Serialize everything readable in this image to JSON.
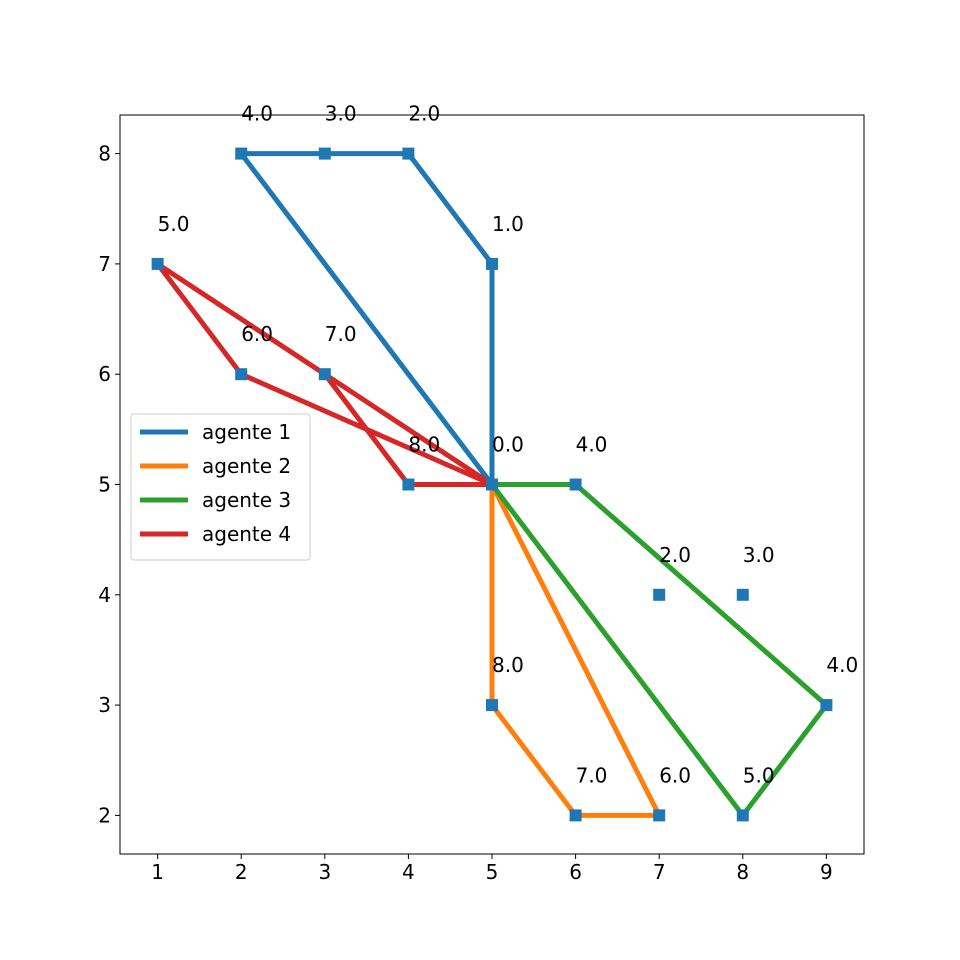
{
  "chart_data": {
    "type": "line",
    "title": "",
    "xlabel": "",
    "ylabel": "",
    "xlim": [
      0.55,
      9.45
    ],
    "ylim": [
      1.65,
      8.35
    ],
    "xticks": [
      1,
      2,
      3,
      4,
      5,
      6,
      7,
      8,
      9
    ],
    "yticks": [
      2,
      3,
      4,
      5,
      6,
      7,
      8
    ],
    "grid": false,
    "legend_position": "center-left",
    "nodes": [
      {
        "x": 5,
        "y": 5,
        "label": "0.0"
      },
      {
        "x": 5,
        "y": 7,
        "label": "1.0"
      },
      {
        "x": 4,
        "y": 8,
        "label": "2.0"
      },
      {
        "x": 3,
        "y": 8,
        "label": "3.0"
      },
      {
        "x": 2,
        "y": 8,
        "label": "4.0"
      },
      {
        "x": 1,
        "y": 7,
        "label": "5.0"
      },
      {
        "x": 2,
        "y": 6,
        "label": "6.0"
      },
      {
        "x": 3,
        "y": 6,
        "label": "7.0"
      },
      {
        "x": 4,
        "y": 5,
        "label": "8.0"
      },
      {
        "x": 6,
        "y": 5,
        "label": "4.0"
      },
      {
        "x": 7,
        "y": 4,
        "label": "2.0"
      },
      {
        "x": 8,
        "y": 4,
        "label": "3.0"
      },
      {
        "x": 9,
        "y": 3,
        "label": "4.0"
      },
      {
        "x": 5,
        "y": 3,
        "label": "8.0"
      },
      {
        "x": 6,
        "y": 2,
        "label": "7.0"
      },
      {
        "x": 7,
        "y": 2,
        "label": "6.0"
      },
      {
        "x": 8,
        "y": 2,
        "label": "5.0"
      }
    ],
    "node_color": "#1f77b4",
    "series": [
      {
        "name": "agente 1",
        "color": "#1f77b4",
        "x": [
          5,
          5,
          4,
          3,
          2,
          5
        ],
        "y": [
          5,
          7,
          8,
          8,
          8,
          5
        ]
      },
      {
        "name": "agente 2",
        "color": "#ff7f0e",
        "x": [
          5,
          5,
          6,
          7,
          5
        ],
        "y": [
          5,
          3,
          2,
          2,
          5
        ]
      },
      {
        "name": "agente 3",
        "color": "#2ca02c",
        "x": [
          5,
          6,
          9,
          8,
          5
        ],
        "y": [
          5,
          5,
          3,
          2,
          5
        ]
      },
      {
        "name": "agente 4",
        "color": "#d62728",
        "x": [
          5,
          1,
          2,
          5,
          4,
          3,
          1
        ],
        "y": [
          5,
          7,
          6,
          5,
          5,
          6,
          7
        ]
      }
    ]
  }
}
